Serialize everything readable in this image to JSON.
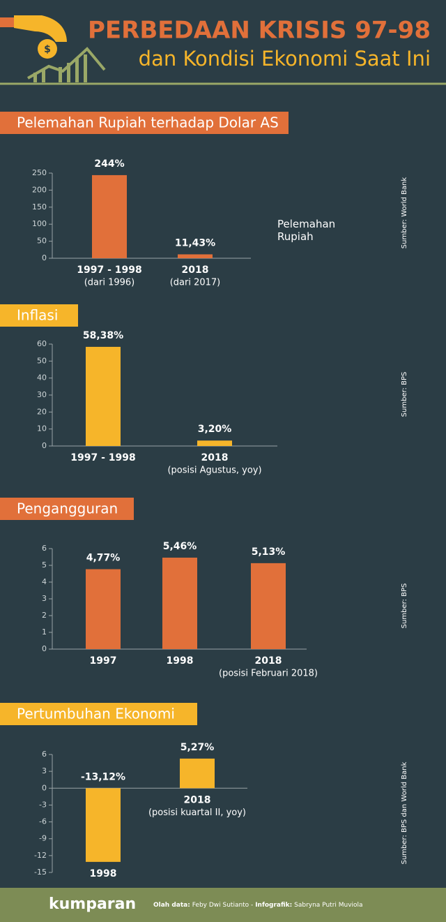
{
  "header": {
    "title": "PERBEDAAN KRISIS 97-98",
    "subtitle": "dan Kondisi Ekonomi Saat Ini"
  },
  "chart_data": [
    {
      "type": "bar",
      "title": "Pelemahan Rupiah terhadap Dolar AS",
      "categories": [
        "1997 - 1998",
        "2018"
      ],
      "category_notes": [
        "(dari 1996)",
        "(dari 2017)"
      ],
      "values": [
        244,
        11.43
      ],
      "value_labels": [
        "244%",
        "11,43%"
      ],
      "color": "#e1703a",
      "ylim": [
        0,
        250
      ],
      "yticks": [
        0,
        50,
        100,
        150,
        200,
        250
      ],
      "legend_text": "Pelemahan Rupiah",
      "source": "Sumber: World Bank"
    },
    {
      "type": "bar",
      "title": "Inflasi",
      "categories": [
        "1997 - 1998",
        "2018"
      ],
      "category_notes": [
        null,
        "(posisi Agustus, yoy)"
      ],
      "values": [
        58.38,
        3.2
      ],
      "value_labels": [
        "58,38%",
        "3,20%"
      ],
      "color": "#f6b52a",
      "ylim": [
        0,
        60
      ],
      "yticks": [
        0,
        10,
        20,
        30,
        40,
        50,
        60
      ],
      "source": "Sumber: BPS"
    },
    {
      "type": "bar",
      "title": "Pengangguran",
      "categories": [
        "1997",
        "1998",
        "2018"
      ],
      "category_notes": [
        null,
        null,
        "(posisi Februari 2018)"
      ],
      "values": [
        4.77,
        5.46,
        5.13
      ],
      "value_labels": [
        "4,77%",
        "5,46%",
        "5,13%"
      ],
      "color": "#e1703a",
      "ylim": [
        0,
        6
      ],
      "yticks": [
        0,
        1,
        2,
        3,
        4,
        5,
        6
      ],
      "source": "Sumber: BPS"
    },
    {
      "type": "bar",
      "title": "Pertumbuhan Ekonomi",
      "categories": [
        "1998",
        "2018"
      ],
      "category_notes": [
        null,
        "(posisi kuartal II, yoy)"
      ],
      "values": [
        -13.12,
        5.27
      ],
      "value_labels": [
        "-13,12%",
        "5,27%"
      ],
      "color": "#f6b52a",
      "ylim": [
        -15,
        6
      ],
      "yticks": [
        -15,
        -12,
        -9,
        -6,
        -3,
        0,
        3,
        6
      ],
      "source": "Sumber: BPS dan World Bank"
    }
  ],
  "footer": {
    "brand": "kumparan",
    "credit_1_label": "Olah data:",
    "credit_1_name": "Feby Dwi Sutianto -",
    "credit_2_label": "Infografik:",
    "credit_2_name": "Sabryna Putri Muviola"
  }
}
